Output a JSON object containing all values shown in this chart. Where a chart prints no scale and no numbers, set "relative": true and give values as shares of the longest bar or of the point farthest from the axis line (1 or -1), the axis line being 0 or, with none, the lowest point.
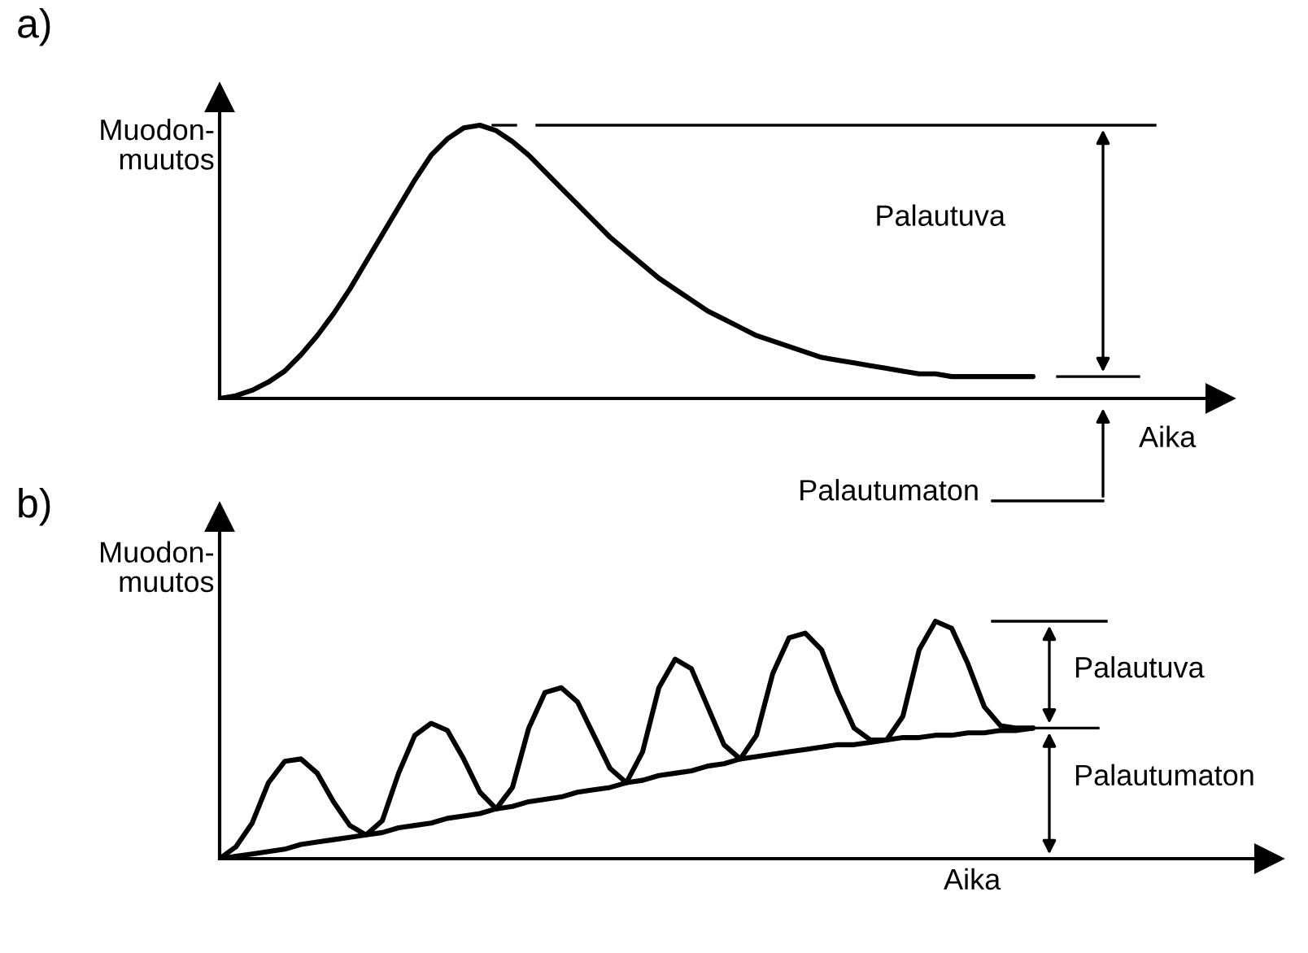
{
  "chart_data": [
    {
      "type": "line",
      "title": "a)",
      "ylabel": "Muodon-\nmuutos",
      "xlabel": "Aika",
      "relative": true,
      "color": "#000000",
      "categories": [
        null,
        null,
        null,
        null,
        null,
        null,
        null,
        null,
        null,
        null,
        null,
        null,
        null,
        null,
        null,
        null,
        null,
        null,
        null,
        null,
        null,
        null,
        null,
        null,
        null,
        null,
        null,
        null,
        null,
        null,
        null,
        null,
        null,
        null,
        null,
        null,
        null,
        null,
        null,
        null,
        null,
        null,
        null,
        null,
        null,
        null,
        null,
        null,
        null,
        null,
        null
      ],
      "series": [
        {
          "color": "#000000",
          "values": [
            0,
            0.01,
            0.03,
            0.06,
            0.1,
            0.16,
            0.23,
            0.31,
            0.4,
            0.5,
            0.6,
            0.7,
            0.8,
            0.89,
            0.95,
            0.99,
            1.0,
            0.98,
            0.94,
            0.89,
            0.83,
            0.77,
            0.71,
            0.65,
            0.59,
            0.54,
            0.49,
            0.44,
            0.4,
            0.36,
            0.32,
            0.29,
            0.26,
            0.23,
            0.21,
            0.19,
            0.17,
            0.15,
            0.14,
            0.13,
            0.12,
            0.11,
            0.1,
            0.09,
            0.09,
            0.08,
            0.08,
            0.08,
            0.08,
            0.08,
            0.08
          ]
        }
      ],
      "annotations": [
        "Palautuva",
        "Palautumaton"
      ]
    },
    {
      "type": "line",
      "title": "b)",
      "ylabel": "Muodon-\nmuutos",
      "xlabel": "Aika",
      "relative": true,
      "color": "#000000",
      "categories": [
        null,
        null,
        null,
        null,
        null,
        null,
        null,
        null,
        null,
        null,
        null,
        null,
        null,
        null,
        null,
        null,
        null,
        null,
        null,
        null,
        null,
        null,
        null,
        null,
        null,
        null,
        null,
        null,
        null,
        null,
        null,
        null,
        null,
        null,
        null,
        null,
        null,
        null,
        null,
        null,
        null,
        null,
        null,
        null,
        null,
        null,
        null,
        null,
        null,
        null,
        null
      ],
      "series": [
        {
          "color": "#000000",
          "values": [
            0,
            0.05,
            0.15,
            0.32,
            0.41,
            0.42,
            0.36,
            0.24,
            0.14,
            0.1,
            0.16,
            0.36,
            0.52,
            0.57,
            0.54,
            0.42,
            0.28,
            0.21,
            0.3,
            0.55,
            0.7,
            0.72,
            0.66,
            0.52,
            0.38,
            0.32,
            0.45,
            0.72,
            0.84,
            0.8,
            0.64,
            0.48,
            0.42,
            0.52,
            0.78,
            0.93,
            0.95,
            0.88,
            0.7,
            0.55,
            0.5,
            0.5,
            0.6,
            0.88,
            1.0,
            0.97,
            0.82,
            0.64,
            0.56,
            0.55,
            0.55
          ]
        },
        {
          "color": "#000000",
          "values": [
            0,
            0.01,
            0.02,
            0.03,
            0.04,
            0.06,
            0.07,
            0.08,
            0.09,
            0.1,
            0.11,
            0.13,
            0.14,
            0.15,
            0.17,
            0.18,
            0.19,
            0.21,
            0.22,
            0.24,
            0.25,
            0.26,
            0.28,
            0.29,
            0.3,
            0.32,
            0.33,
            0.35,
            0.36,
            0.37,
            0.39,
            0.4,
            0.42,
            0.43,
            0.44,
            0.45,
            0.46,
            0.47,
            0.48,
            0.48,
            0.49,
            0.5,
            0.51,
            0.51,
            0.52,
            0.52,
            0.53,
            0.53,
            0.54,
            0.54,
            0.55
          ]
        }
      ],
      "annotations": [
        "Palautuva",
        "Palautumaton"
      ]
    }
  ]
}
